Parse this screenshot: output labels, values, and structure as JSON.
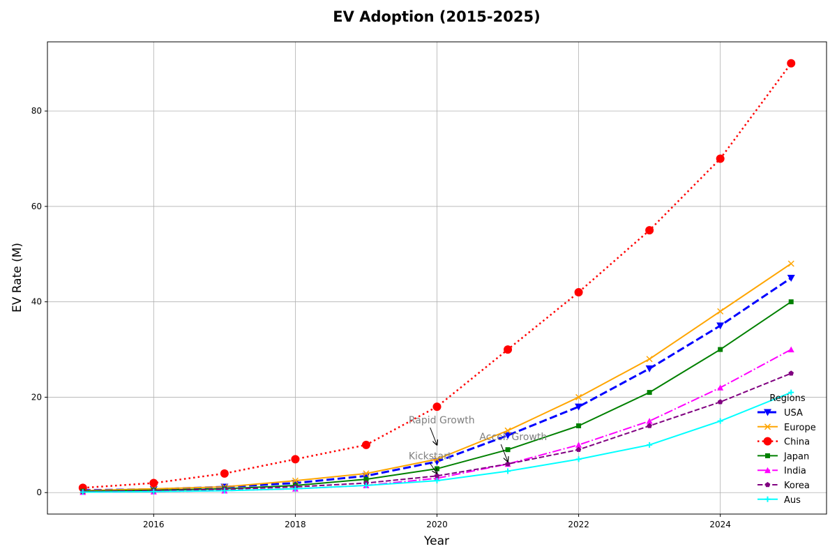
{
  "chart_data": {
    "type": "line",
    "title": "EV Adoption (2015-2025)",
    "xlabel": "Year",
    "ylabel": "EV Rate (M)",
    "x": [
      2015,
      2016,
      2017,
      2018,
      2019,
      2020,
      2021,
      2022,
      2023,
      2024,
      2025
    ],
    "xlim": [
      2014.5,
      2025.5
    ],
    "ylim": [
      -4.5,
      94.5
    ],
    "xticks": [
      "2016",
      "2018",
      "2020",
      "2022",
      "2024"
    ],
    "yticks": [
      "0",
      "20",
      "40",
      "60",
      "80"
    ],
    "grid": true,
    "legend_title": "Regions",
    "legend_position": "lower-right",
    "series": [
      {
        "name": "USA",
        "color": "#0000ff",
        "dash": "dashed",
        "marker": "triangle-down",
        "width": 3,
        "values": [
          0.5,
          0.7,
          1.2,
          2.0,
          3.5,
          6.5,
          12,
          18,
          26,
          35,
          45
        ]
      },
      {
        "name": "Europe",
        "color": "#ffa500",
        "dash": "solid",
        "marker": "x",
        "width": 2,
        "values": [
          0.4,
          0.8,
          1.2,
          2.5,
          4.0,
          7.0,
          13,
          20,
          28,
          38,
          48
        ]
      },
      {
        "name": "China",
        "color": "#ff0000",
        "dash": "dotted",
        "marker": "circle",
        "width": 2.5,
        "values": [
          1.0,
          2.0,
          4.0,
          7.0,
          10,
          18,
          30,
          42,
          55,
          70,
          90
        ]
      },
      {
        "name": "Japan",
        "color": "#008000",
        "dash": "solid",
        "marker": "square",
        "width": 2,
        "values": [
          0.3,
          0.5,
          0.8,
          1.5,
          2.8,
          5.0,
          9.0,
          14,
          21,
          30,
          40
        ]
      },
      {
        "name": "India",
        "color": "#ff00ff",
        "dash": "dashdot",
        "marker": "triangle-up",
        "width": 2,
        "values": [
          0.1,
          0.2,
          0.4,
          0.8,
          1.5,
          3.0,
          6.0,
          10,
          15,
          22,
          30
        ]
      },
      {
        "name": "Korea",
        "color": "#800080",
        "dash": "dashed",
        "marker": "pentagon",
        "width": 2,
        "values": [
          0.2,
          0.4,
          0.7,
          1.2,
          2.0,
          3.5,
          6.0,
          9.0,
          14,
          19,
          25
        ]
      },
      {
        "name": "Aus",
        "color": "#00ffff",
        "dash": "solid",
        "marker": "plus",
        "width": 2,
        "values": [
          0.1,
          0.2,
          0.4,
          0.8,
          1.5,
          2.5,
          4.5,
          7.0,
          10,
          15,
          21
        ]
      }
    ],
    "annotations": [
      {
        "text": "Kickstart",
        "x": 2020,
        "y": 4.0,
        "text_x": 2019.6,
        "text_y": 7.0
      },
      {
        "text": "Rapid Growth",
        "x": 2020,
        "y": 10.0,
        "text_x": 2019.6,
        "text_y": 14.5
      },
      {
        "text": "Accel. Growth",
        "x": 2021,
        "y": 6.5,
        "text_x": 2020.6,
        "text_y": 11.0
      }
    ]
  }
}
